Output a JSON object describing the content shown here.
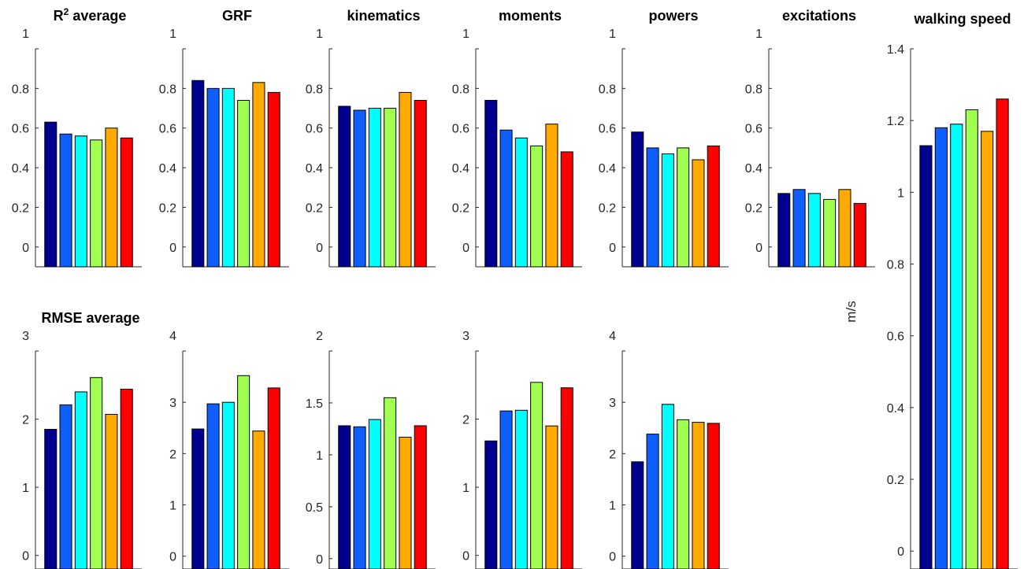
{
  "chart_data": [
    {
      "type": "bar",
      "title": "R² average",
      "title_base": "R",
      "title_sup": "2",
      "title_rest": " average",
      "ylim": [
        -0.1,
        1
      ],
      "yticks": [
        0,
        0.2,
        0.4,
        0.6,
        0.8,
        1
      ],
      "tick_labels": [
        "0",
        "0.2",
        "0.4",
        "0.6",
        "0.8",
        "1"
      ],
      "values": [
        0.63,
        0.57,
        0.56,
        0.54,
        0.6,
        0.55
      ]
    },
    {
      "type": "bar",
      "title": "GRF",
      "ylim": [
        -0.1,
        1
      ],
      "yticks": [
        0,
        0.2,
        0.4,
        0.6,
        0.8,
        1
      ],
      "tick_labels": [
        "0",
        "0.2",
        "0.4",
        "0.6",
        "0.8",
        "1"
      ],
      "values": [
        0.84,
        0.8,
        0.8,
        0.74,
        0.83,
        0.78
      ]
    },
    {
      "type": "bar",
      "title": "kinematics",
      "ylim": [
        -0.1,
        1
      ],
      "yticks": [
        0,
        0.2,
        0.4,
        0.6,
        0.8,
        1
      ],
      "tick_labels": [
        "0",
        "0.2",
        "0.4",
        "0.6",
        "0.8",
        "1"
      ],
      "values": [
        0.71,
        0.69,
        0.7,
        0.7,
        0.78,
        0.74
      ]
    },
    {
      "type": "bar",
      "title": "moments",
      "ylim": [
        -0.1,
        1
      ],
      "yticks": [
        0,
        0.2,
        0.4,
        0.6,
        0.8,
        1
      ],
      "tick_labels": [
        "0",
        "0.2",
        "0.4",
        "0.6",
        "0.8",
        "1"
      ],
      "values": [
        0.74,
        0.59,
        0.55,
        0.51,
        0.62,
        0.48
      ]
    },
    {
      "type": "bar",
      "title": "powers",
      "ylim": [
        -0.1,
        1
      ],
      "yticks": [
        0,
        0.2,
        0.4,
        0.6,
        0.8,
        1
      ],
      "tick_labels": [
        "0",
        "0.2",
        "0.4",
        "0.6",
        "0.8",
        "1"
      ],
      "values": [
        0.58,
        0.5,
        0.47,
        0.5,
        0.44,
        0.51
      ]
    },
    {
      "type": "bar",
      "title": "excitations",
      "ylim": [
        -0.1,
        1
      ],
      "yticks": [
        0,
        0.2,
        0.4,
        0.6,
        0.8,
        1
      ],
      "tick_labels": [
        "0",
        "0.2",
        "0.4",
        "0.6",
        "0.8",
        "1"
      ],
      "values": [
        0.27,
        0.29,
        0.27,
        0.24,
        0.29,
        0.22
      ]
    },
    {
      "type": "bar",
      "title": "RMSE average",
      "ylim": [
        -0.2,
        3
      ],
      "yticks": [
        0,
        1,
        2,
        3
      ],
      "tick_labels": [
        "0",
        "1",
        "2",
        "3"
      ],
      "values": [
        1.85,
        2.21,
        2.4,
        2.61,
        2.07,
        2.44
      ]
    },
    {
      "type": "bar",
      "title": "",
      "ylim": [
        -0.25,
        4
      ],
      "yticks": [
        0,
        1,
        2,
        3,
        4
      ],
      "tick_labels": [
        "0",
        "1",
        "2",
        "3",
        "4"
      ],
      "values": [
        2.48,
        2.97,
        3.0,
        3.52,
        2.44,
        3.28
      ]
    },
    {
      "type": "bar",
      "title": "",
      "ylim": [
        -0.1,
        2
      ],
      "yticks": [
        0,
        0.5,
        1,
        1.5,
        2
      ],
      "tick_labels": [
        "0",
        "0.5",
        "1",
        "1.5",
        "2"
      ],
      "values": [
        1.28,
        1.27,
        1.34,
        1.55,
        1.17,
        1.28
      ]
    },
    {
      "type": "bar",
      "title": "",
      "ylim": [
        -0.2,
        3
      ],
      "yticks": [
        0,
        1,
        2,
        3
      ],
      "tick_labels": [
        "0",
        "1",
        "2",
        "3"
      ],
      "values": [
        1.68,
        2.12,
        2.13,
        2.54,
        1.9,
        2.46
      ]
    },
    {
      "type": "bar",
      "title": "",
      "ylim": [
        -0.25,
        4
      ],
      "yticks": [
        0,
        1,
        2,
        3,
        4
      ],
      "tick_labels": [
        "0",
        "1",
        "2",
        "3",
        "4"
      ],
      "values": [
        1.84,
        2.38,
        2.96,
        2.66,
        2.61,
        2.59
      ]
    },
    {
      "type": "bar",
      "title": "walking speed",
      "ylabel": "m/s",
      "ylim": [
        -0.05,
        1.4
      ],
      "yticks": [
        0,
        0.2,
        0.4,
        0.6,
        0.8,
        1,
        1.2,
        1.4
      ],
      "tick_labels": [
        "0",
        "0.2",
        "0.4",
        "0.6",
        "0.8",
        "1",
        "1.2",
        "1.4"
      ],
      "values": [
        1.13,
        1.18,
        1.19,
        1.23,
        1.17,
        1.26
      ]
    }
  ],
  "colors": {
    "bars": [
      "#00008f",
      "#0f5fff",
      "#00ffff",
      "#a0ff50",
      "#ffaa00",
      "#ff0000"
    ],
    "axis": "#262626"
  }
}
